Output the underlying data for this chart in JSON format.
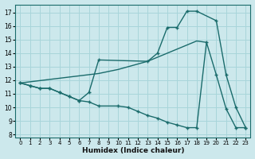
{
  "xlabel": "Humidex (Indice chaleur)",
  "bg_color": "#cce8ec",
  "grid_color": "#a8d5da",
  "line_color": "#1a6b6b",
  "xlim": [
    -0.5,
    23.5
  ],
  "ylim": [
    7.8,
    17.6
  ],
  "xticks": [
    0,
    1,
    2,
    3,
    4,
    5,
    6,
    7,
    8,
    9,
    10,
    11,
    12,
    13,
    14,
    15,
    16,
    17,
    18,
    19,
    20,
    21,
    22,
    23
  ],
  "yticks": [
    8,
    9,
    10,
    11,
    12,
    13,
    14,
    15,
    16,
    17
  ],
  "curve1_x": [
    0,
    1,
    2,
    3,
    4,
    5,
    6,
    7,
    8,
    13,
    14,
    15,
    16,
    17,
    18,
    20,
    21,
    22,
    23
  ],
  "curve1_y": [
    11.8,
    11.6,
    11.4,
    11.4,
    11.1,
    10.8,
    10.5,
    11.1,
    13.5,
    13.4,
    14.0,
    15.9,
    15.9,
    17.1,
    17.1,
    16.4,
    12.4,
    10.0,
    8.5
  ],
  "curve2_x": [
    0,
    1,
    2,
    3,
    4,
    5,
    6,
    7,
    8,
    10,
    11,
    12,
    13,
    14,
    15,
    16,
    17,
    18,
    19,
    20,
    21,
    22,
    23
  ],
  "curve2_y": [
    11.8,
    11.6,
    11.4,
    11.4,
    11.1,
    10.8,
    10.5,
    10.4,
    10.1,
    10.1,
    10.0,
    9.7,
    9.4,
    9.2,
    8.9,
    8.7,
    8.5,
    8.5,
    14.8,
    12.4,
    9.9,
    8.5,
    8.5
  ],
  "diag_x": [
    0,
    8,
    10,
    11,
    12,
    13,
    14,
    15,
    16,
    17,
    18,
    19
  ],
  "diag_y": [
    11.8,
    12.5,
    12.8,
    13.0,
    13.2,
    13.4,
    13.7,
    14.0,
    14.3,
    14.6,
    14.9,
    14.8
  ]
}
